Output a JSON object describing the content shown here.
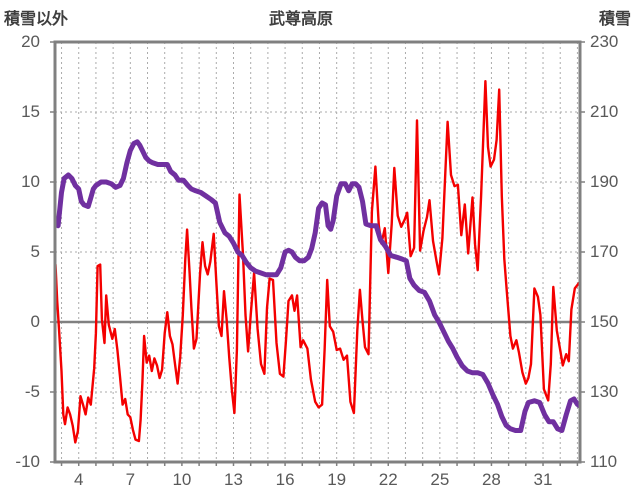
{
  "header": {
    "left_axis_title": "積雪以外",
    "chart_title": "武尊高原",
    "right_axis_title": "積雪"
  },
  "chart_data": {
    "type": "line",
    "title": "武尊高原",
    "x_axis": {
      "tick_labels": [
        4,
        7,
        10,
        13,
        16,
        19,
        22,
        25,
        28,
        31
      ],
      "range_days": [
        2.62,
        33.15
      ],
      "gridline_every_days": 1,
      "grid": "dashed-vertical"
    },
    "y_left": {
      "label": "積雪以外",
      "range": [
        -10,
        20
      ],
      "ticks": [
        20,
        15,
        10,
        5,
        0,
        -5,
        -10
      ],
      "zero_line": true
    },
    "y_right": {
      "label": "積雪",
      "range": [
        110,
        230
      ],
      "ticks": [
        230,
        210,
        190,
        170,
        150,
        130,
        110
      ]
    },
    "colors": {
      "red_series": "#f40000",
      "purple_series": "#7030a0",
      "grid": "#ababab",
      "frame": "#808080",
      "zero_line": "#808080",
      "text": "#595959",
      "title_text": "#3f3f3f"
    },
    "series": [
      {
        "id": "left_axis_red",
        "axis": "left",
        "color": "#f40000",
        "points": [
          [
            2.65,
            4.1
          ],
          [
            2.75,
            1.5
          ],
          [
            2.85,
            -0.5
          ],
          [
            3.0,
            -3.5
          ],
          [
            3.1,
            -6.6
          ],
          [
            3.2,
            -7.3
          ],
          [
            3.35,
            -6.1
          ],
          [
            3.5,
            -6.6
          ],
          [
            3.65,
            -7.4
          ],
          [
            3.8,
            -8.6
          ],
          [
            3.95,
            -7.8
          ],
          [
            4.1,
            -5.3
          ],
          [
            4.25,
            -5.9
          ],
          [
            4.4,
            -6.6
          ],
          [
            4.55,
            -5.4
          ],
          [
            4.7,
            -5.9
          ],
          [
            4.8,
            -4.6
          ],
          [
            4.9,
            -3.3
          ],
          [
            5.0,
            -0.8
          ],
          [
            5.1,
            4.0
          ],
          [
            5.25,
            4.1
          ],
          [
            5.35,
            0.2
          ],
          [
            5.5,
            -1.5
          ],
          [
            5.6,
            1.9
          ],
          [
            5.75,
            -0.2
          ],
          [
            5.95,
            -1.2
          ],
          [
            6.1,
            -0.5
          ],
          [
            6.25,
            -2.0
          ],
          [
            6.4,
            -3.9
          ],
          [
            6.55,
            -5.9
          ],
          [
            6.7,
            -5.5
          ],
          [
            6.85,
            -6.6
          ],
          [
            7.0,
            -6.8
          ],
          [
            7.15,
            -7.7
          ],
          [
            7.3,
            -8.4
          ],
          [
            7.5,
            -8.5
          ],
          [
            7.6,
            -7.0
          ],
          [
            7.7,
            -4.3
          ],
          [
            7.8,
            -1.0
          ],
          [
            7.95,
            -2.9
          ],
          [
            8.1,
            -2.4
          ],
          [
            8.25,
            -3.5
          ],
          [
            8.4,
            -2.6
          ],
          [
            8.55,
            -3.1
          ],
          [
            8.7,
            -4.0
          ],
          [
            8.85,
            -3.4
          ],
          [
            9.0,
            -0.8
          ],
          [
            9.15,
            0.7
          ],
          [
            9.3,
            -1.0
          ],
          [
            9.45,
            -1.6
          ],
          [
            9.6,
            -3.0
          ],
          [
            9.75,
            -4.4
          ],
          [
            9.9,
            -2.5
          ],
          [
            10.05,
            0.5
          ],
          [
            10.2,
            4.5
          ],
          [
            10.3,
            6.6
          ],
          [
            10.45,
            3.5
          ],
          [
            10.55,
            1.0
          ],
          [
            10.7,
            -1.9
          ],
          [
            10.85,
            -1.2
          ],
          [
            11.05,
            3.4
          ],
          [
            11.2,
            5.7
          ],
          [
            11.35,
            4.0
          ],
          [
            11.5,
            3.4
          ],
          [
            11.65,
            4.3
          ],
          [
            11.85,
            6.3
          ],
          [
            12.0,
            2.9
          ],
          [
            12.15,
            -0.3
          ],
          [
            12.3,
            -1.0
          ],
          [
            12.45,
            2.2
          ],
          [
            12.6,
            0.2
          ],
          [
            12.75,
            -2.5
          ],
          [
            12.9,
            -4.8
          ],
          [
            13.05,
            -6.5
          ],
          [
            13.2,
            -2.0
          ],
          [
            13.35,
            9.1
          ],
          [
            13.55,
            4.8
          ],
          [
            13.7,
            0.5
          ],
          [
            13.85,
            -2.1
          ],
          [
            14.0,
            0.5
          ],
          [
            14.2,
            3.5
          ],
          [
            14.4,
            -0.5
          ],
          [
            14.6,
            -3.0
          ],
          [
            14.8,
            -3.7
          ],
          [
            14.95,
            1.0
          ],
          [
            15.1,
            3.1
          ],
          [
            15.3,
            3.0
          ],
          [
            15.5,
            -1.5
          ],
          [
            15.7,
            -3.7
          ],
          [
            15.9,
            -3.9
          ],
          [
            16.05,
            -1.4
          ],
          [
            16.2,
            1.5
          ],
          [
            16.4,
            1.9
          ],
          [
            16.55,
            0.8
          ],
          [
            16.7,
            1.9
          ],
          [
            16.9,
            -1.8
          ],
          [
            17.05,
            -1.3
          ],
          [
            17.3,
            -1.9
          ],
          [
            17.5,
            -4.1
          ],
          [
            17.75,
            -5.7
          ],
          [
            17.95,
            -6.1
          ],
          [
            18.15,
            -5.9
          ],
          [
            18.3,
            -2.0
          ],
          [
            18.45,
            3.0
          ],
          [
            18.6,
            -0.3
          ],
          [
            18.8,
            -0.7
          ],
          [
            19.0,
            -2.0
          ],
          [
            19.2,
            -1.9
          ],
          [
            19.4,
            -2.7
          ],
          [
            19.6,
            -2.4
          ],
          [
            19.8,
            -5.7
          ],
          [
            20.0,
            -6.5
          ],
          [
            20.2,
            -0.6
          ],
          [
            20.35,
            2.3
          ],
          [
            20.5,
            0.1
          ],
          [
            20.65,
            -1.8
          ],
          [
            20.85,
            -2.3
          ],
          [
            21.05,
            7.9
          ],
          [
            21.25,
            11.1
          ],
          [
            21.45,
            6.9
          ],
          [
            21.6,
            5.6
          ],
          [
            21.8,
            6.7
          ],
          [
            22.0,
            3.5
          ],
          [
            22.2,
            7.0
          ],
          [
            22.35,
            11.0
          ],
          [
            22.55,
            7.6
          ],
          [
            22.75,
            6.8
          ],
          [
            22.95,
            7.3
          ],
          [
            23.1,
            7.8
          ],
          [
            23.3,
            4.7
          ],
          [
            23.5,
            5.3
          ],
          [
            23.67,
            14.4
          ],
          [
            23.85,
            5.1
          ],
          [
            24.05,
            6.5
          ],
          [
            24.25,
            7.5
          ],
          [
            24.4,
            8.7
          ],
          [
            24.6,
            5.8
          ],
          [
            24.8,
            4.4
          ],
          [
            24.95,
            3.4
          ],
          [
            25.15,
            6.0
          ],
          [
            25.45,
            14.3
          ],
          [
            25.65,
            10.5
          ],
          [
            25.85,
            9.7
          ],
          [
            26.05,
            9.8
          ],
          [
            26.25,
            6.2
          ],
          [
            26.45,
            8.4
          ],
          [
            26.65,
            4.9
          ],
          [
            26.9,
            8.9
          ],
          [
            27.05,
            5.5
          ],
          [
            27.2,
            3.7
          ],
          [
            27.4,
            9.0
          ],
          [
            27.65,
            17.2
          ],
          [
            27.8,
            12.5
          ],
          [
            27.95,
            11.1
          ],
          [
            28.15,
            11.6
          ],
          [
            28.3,
            13.0
          ],
          [
            28.45,
            16.6
          ],
          [
            28.6,
            9.0
          ],
          [
            28.75,
            4.5
          ],
          [
            28.9,
            2.1
          ],
          [
            29.1,
            -1.0
          ],
          [
            29.25,
            -1.9
          ],
          [
            29.45,
            -1.3
          ],
          [
            29.6,
            -2.2
          ],
          [
            29.8,
            -3.6
          ],
          [
            30.0,
            -4.4
          ],
          [
            30.15,
            -4.0
          ],
          [
            30.3,
            -3.0
          ],
          [
            30.5,
            2.4
          ],
          [
            30.7,
            1.8
          ],
          [
            30.85,
            0.5
          ],
          [
            31.05,
            -4.8
          ],
          [
            31.3,
            -5.6
          ],
          [
            31.45,
            -3.0
          ],
          [
            31.6,
            2.5
          ],
          [
            31.8,
            -0.6
          ],
          [
            32.0,
            -2.0
          ],
          [
            32.15,
            -3.1
          ],
          [
            32.35,
            -2.3
          ],
          [
            32.5,
            -2.8
          ],
          [
            32.65,
            0.9
          ],
          [
            32.85,
            2.4
          ],
          [
            33.1,
            2.8
          ]
        ]
      },
      {
        "id": "right_axis_purple_snow",
        "axis": "right",
        "color": "#7030a0",
        "points": [
          [
            2.65,
            179
          ],
          [
            2.8,
            177.5
          ],
          [
            3.0,
            187
          ],
          [
            3.15,
            191
          ],
          [
            3.4,
            192
          ],
          [
            3.6,
            191
          ],
          [
            3.8,
            189
          ],
          [
            4.0,
            188
          ],
          [
            4.15,
            184.5
          ],
          [
            4.3,
            183.5
          ],
          [
            4.55,
            183
          ],
          [
            4.7,
            185.5
          ],
          [
            4.85,
            188
          ],
          [
            5.0,
            189
          ],
          [
            5.3,
            190
          ],
          [
            5.6,
            190
          ],
          [
            5.9,
            189.5
          ],
          [
            6.15,
            188.5
          ],
          [
            6.4,
            189
          ],
          [
            6.6,
            191
          ],
          [
            6.8,
            195.5
          ],
          [
            7.0,
            199
          ],
          [
            7.2,
            201
          ],
          [
            7.4,
            201.5
          ],
          [
            7.55,
            200.5
          ],
          [
            7.7,
            199
          ],
          [
            7.9,
            197
          ],
          [
            8.1,
            196
          ],
          [
            8.3,
            195.5
          ],
          [
            8.6,
            195
          ],
          [
            8.9,
            195
          ],
          [
            9.15,
            195
          ],
          [
            9.35,
            193
          ],
          [
            9.6,
            192
          ],
          [
            9.8,
            190.5
          ],
          [
            10.1,
            190.5
          ],
          [
            10.35,
            189
          ],
          [
            10.55,
            188
          ],
          [
            10.8,
            187.5
          ],
          [
            11.1,
            187
          ],
          [
            11.4,
            186
          ],
          [
            11.7,
            185
          ],
          [
            11.95,
            184
          ],
          [
            12.2,
            178.5
          ],
          [
            12.5,
            175.5
          ],
          [
            12.75,
            174.5
          ],
          [
            13.0,
            172.5
          ],
          [
            13.25,
            170
          ],
          [
            13.5,
            169
          ],
          [
            13.75,
            167
          ],
          [
            14.0,
            165.5
          ],
          [
            14.3,
            164.5
          ],
          [
            14.6,
            164
          ],
          [
            14.9,
            163.5
          ],
          [
            15.2,
            163.5
          ],
          [
            15.5,
            163.5
          ],
          [
            15.75,
            165.5
          ],
          [
            16.0,
            170
          ],
          [
            16.2,
            170.5
          ],
          [
            16.4,
            170
          ],
          [
            16.6,
            168.5
          ],
          [
            16.85,
            167.5
          ],
          [
            17.1,
            167.5
          ],
          [
            17.35,
            168.5
          ],
          [
            17.55,
            171
          ],
          [
            17.75,
            175.5
          ],
          [
            17.95,
            182.5
          ],
          [
            18.15,
            184
          ],
          [
            18.35,
            183.5
          ],
          [
            18.5,
            177.5
          ],
          [
            18.65,
            176.5
          ],
          [
            18.8,
            179
          ],
          [
            19.0,
            186
          ],
          [
            19.25,
            189.5
          ],
          [
            19.5,
            189.5
          ],
          [
            19.7,
            187.5
          ],
          [
            19.9,
            189.5
          ],
          [
            20.1,
            189.5
          ],
          [
            20.3,
            188.5
          ],
          [
            20.5,
            184.5
          ],
          [
            20.7,
            178
          ],
          [
            21.0,
            177.5
          ],
          [
            21.3,
            177.5
          ],
          [
            21.55,
            173.5
          ],
          [
            21.85,
            171.5
          ],
          [
            22.15,
            169
          ],
          [
            22.5,
            168.5
          ],
          [
            22.8,
            168
          ],
          [
            23.05,
            167.5
          ],
          [
            23.25,
            162.5
          ],
          [
            23.5,
            160.5
          ],
          [
            23.8,
            159
          ],
          [
            24.1,
            158.5
          ],
          [
            24.4,
            156
          ],
          [
            24.7,
            152
          ],
          [
            24.95,
            150
          ],
          [
            25.2,
            147.5
          ],
          [
            25.5,
            144.5
          ],
          [
            25.75,
            142.5
          ],
          [
            26.0,
            140
          ],
          [
            26.3,
            137.5
          ],
          [
            26.6,
            136
          ],
          [
            26.9,
            135.5
          ],
          [
            27.2,
            135.5
          ],
          [
            27.5,
            135
          ],
          [
            27.8,
            132.5
          ],
          [
            28.1,
            129
          ],
          [
            28.35,
            126.5
          ],
          [
            28.6,
            123
          ],
          [
            28.85,
            120.5
          ],
          [
            29.1,
            119.5
          ],
          [
            29.4,
            119
          ],
          [
            29.7,
            119
          ],
          [
            29.95,
            124.5
          ],
          [
            30.15,
            127
          ],
          [
            30.5,
            127.5
          ],
          [
            30.8,
            127
          ],
          [
            31.1,
            123.5
          ],
          [
            31.35,
            121.5
          ],
          [
            31.6,
            121.5
          ],
          [
            31.85,
            119.5
          ],
          [
            32.1,
            119
          ],
          [
            32.35,
            123.5
          ],
          [
            32.6,
            127.5
          ],
          [
            32.8,
            128
          ],
          [
            33.0,
            126.5
          ],
          [
            33.13,
            126
          ]
        ]
      }
    ]
  }
}
